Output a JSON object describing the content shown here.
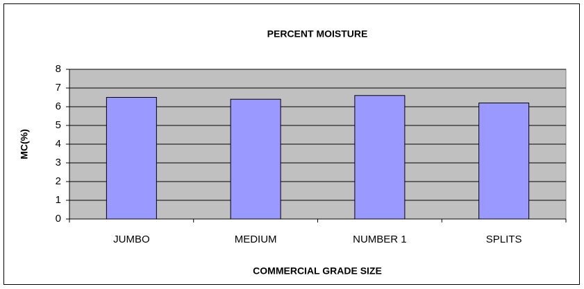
{
  "chart_data": {
    "type": "bar",
    "title": "PERCENT MOISTURE",
    "x_label": "COMMERCIAL GRADE SIZE",
    "y_label": "MC(%)",
    "categories": [
      "JUMBO",
      "MEDIUM",
      "NUMBER 1",
      "SPLITS"
    ],
    "values": [
      6.5,
      6.4,
      6.6,
      6.2
    ],
    "color": "#9999ff",
    "ylim": [
      0,
      8
    ],
    "yticks": [
      0,
      1,
      2,
      3,
      4,
      5,
      6,
      7,
      8
    ],
    "grid": true
  }
}
